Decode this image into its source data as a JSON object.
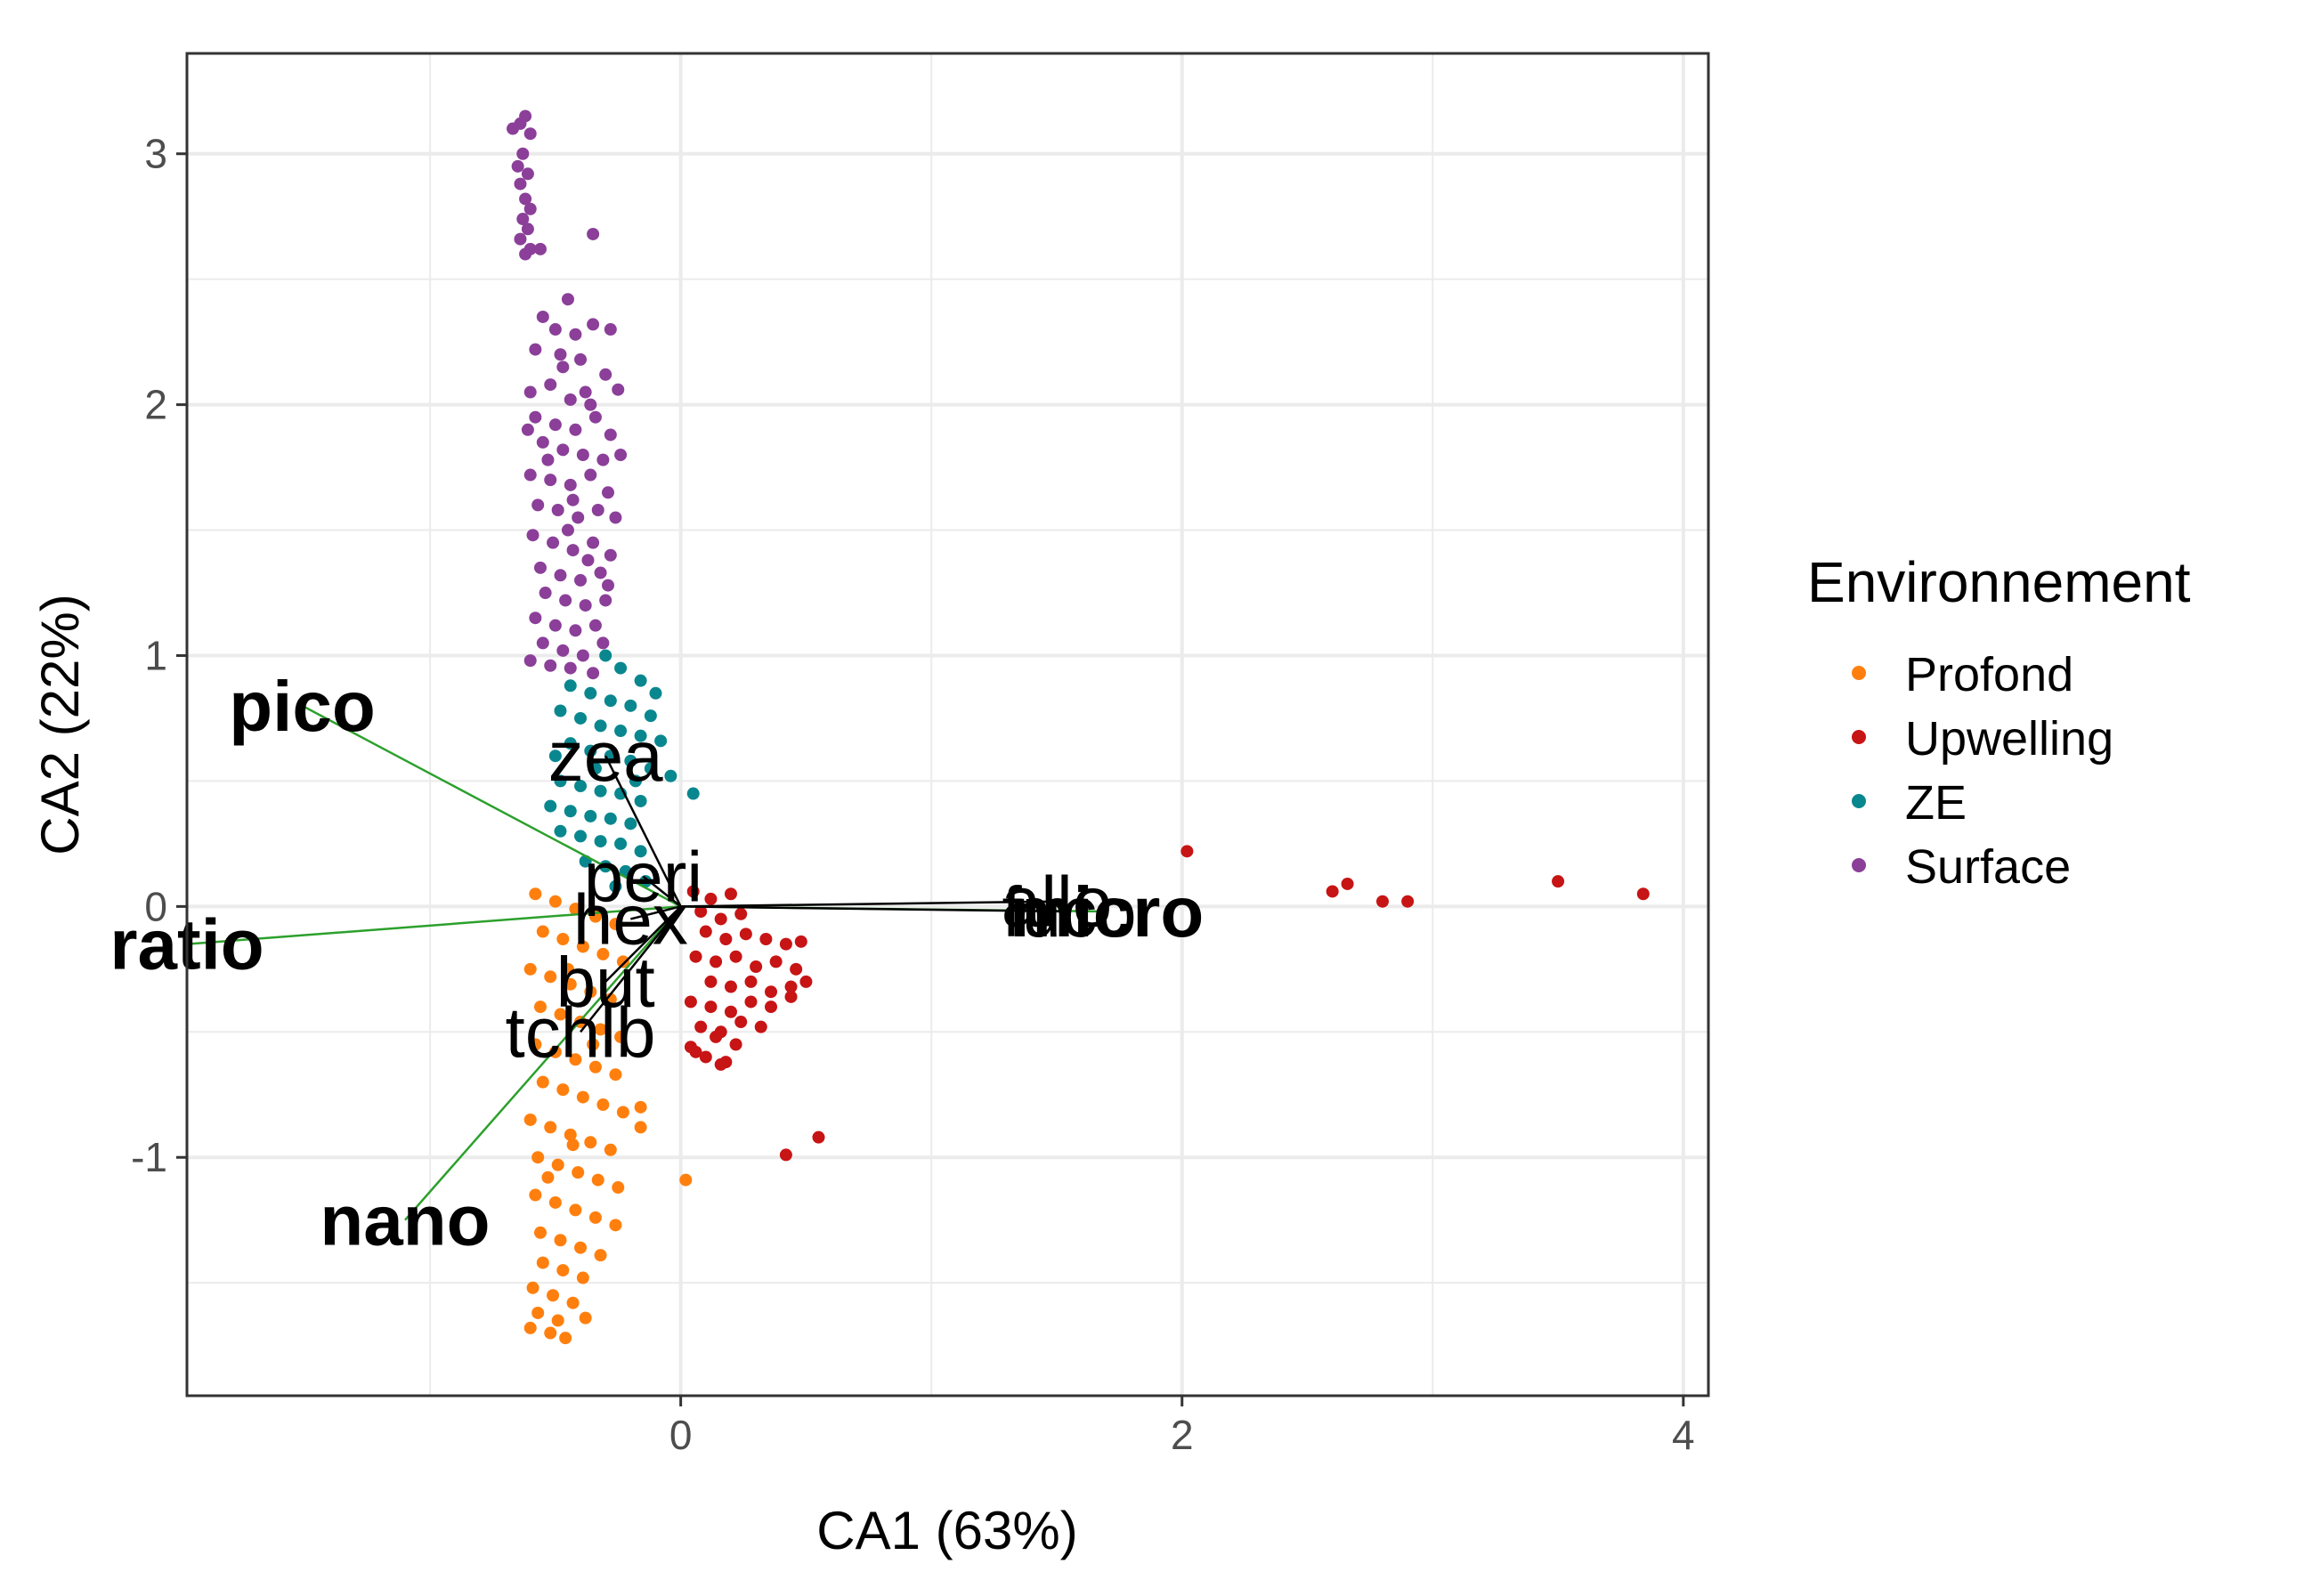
{
  "chart_data": {
    "type": "scatter",
    "xlabel": "CA1 (63%)",
    "ylabel": "CA2 (22%)",
    "xlim": [
      -1.97,
      4.1
    ],
    "ylim": [
      -1.95,
      3.4
    ],
    "x_ticks": [
      0,
      2,
      4
    ],
    "y_ticks": [
      -1,
      0,
      1,
      2,
      3
    ],
    "grid": true,
    "legend": {
      "title": "Environnement",
      "placement": "right",
      "entries": [
        {
          "name": "Profond",
          "color": "#FF7F0E"
        },
        {
          "name": "Upwelling",
          "color": "#C71414"
        },
        {
          "name": "ZE",
          "color": "#09878F"
        },
        {
          "name": "Surface",
          "color": "#8B3F99"
        }
      ]
    },
    "series": [
      {
        "name": "Surface",
        "color": "#8B3F99",
        "points": [
          [
            -0.67,
            3.1
          ],
          [
            -0.64,
            3.12
          ],
          [
            -0.62,
            3.15
          ],
          [
            -0.6,
            3.08
          ],
          [
            -0.63,
            3.0
          ],
          [
            -0.65,
            2.95
          ],
          [
            -0.61,
            2.92
          ],
          [
            -0.64,
            2.88
          ],
          [
            -0.62,
            2.82
          ],
          [
            -0.6,
            2.78
          ],
          [
            -0.63,
            2.74
          ],
          [
            -0.61,
            2.7
          ],
          [
            -0.64,
            2.66
          ],
          [
            -0.6,
            2.62
          ],
          [
            -0.62,
            2.6
          ],
          [
            -0.56,
            2.62
          ],
          [
            -0.35,
            2.68
          ],
          [
            -0.45,
            2.42
          ],
          [
            -0.55,
            2.35
          ],
          [
            -0.5,
            2.3
          ],
          [
            -0.42,
            2.28
          ],
          [
            -0.35,
            2.32
          ],
          [
            -0.28,
            2.3
          ],
          [
            -0.58,
            2.22
          ],
          [
            -0.48,
            2.2
          ],
          [
            -0.4,
            2.18
          ],
          [
            -0.3,
            2.12
          ],
          [
            -0.6,
            2.05
          ],
          [
            -0.52,
            2.08
          ],
          [
            -0.44,
            2.02
          ],
          [
            -0.36,
            2.0
          ],
          [
            -0.25,
            2.06
          ],
          [
            -0.58,
            1.95
          ],
          [
            -0.5,
            1.92
          ],
          [
            -0.42,
            1.9
          ],
          [
            -0.34,
            1.95
          ],
          [
            -0.28,
            1.88
          ],
          [
            -0.55,
            1.85
          ],
          [
            -0.47,
            1.82
          ],
          [
            -0.39,
            1.8
          ],
          [
            -0.31,
            1.78
          ],
          [
            -0.24,
            1.8
          ],
          [
            -0.6,
            1.72
          ],
          [
            -0.52,
            1.7
          ],
          [
            -0.44,
            1.68
          ],
          [
            -0.36,
            1.72
          ],
          [
            -0.29,
            1.65
          ],
          [
            -0.57,
            1.6
          ],
          [
            -0.49,
            1.58
          ],
          [
            -0.41,
            1.55
          ],
          [
            -0.33,
            1.58
          ],
          [
            -0.26,
            1.55
          ],
          [
            -0.59,
            1.48
          ],
          [
            -0.51,
            1.45
          ],
          [
            -0.43,
            1.42
          ],
          [
            -0.35,
            1.45
          ],
          [
            -0.28,
            1.4
          ],
          [
            -0.56,
            1.35
          ],
          [
            -0.48,
            1.32
          ],
          [
            -0.4,
            1.3
          ],
          [
            -0.32,
            1.33
          ],
          [
            -0.54,
            1.25
          ],
          [
            -0.46,
            1.22
          ],
          [
            -0.38,
            1.2
          ],
          [
            -0.3,
            1.22
          ],
          [
            -0.58,
            1.15
          ],
          [
            -0.5,
            1.12
          ],
          [
            -0.42,
            1.1
          ],
          [
            -0.34,
            1.12
          ],
          [
            -0.55,
            1.05
          ],
          [
            -0.47,
            1.02
          ],
          [
            -0.39,
            1.0
          ],
          [
            -0.31,
            1.05
          ],
          [
            -0.6,
            0.98
          ],
          [
            -0.52,
            0.96
          ],
          [
            -0.44,
            0.95
          ],
          [
            -0.35,
            0.93
          ],
          [
            -0.47,
            2.15
          ],
          [
            -0.38,
            2.05
          ],
          [
            -0.53,
            1.78
          ],
          [
            -0.45,
            1.5
          ],
          [
            -0.37,
            1.38
          ],
          [
            -0.29,
            1.28
          ],
          [
            -0.61,
            1.9
          ],
          [
            -0.43,
            1.62
          ]
        ]
      },
      {
        "name": "ZE",
        "color": "#09878F",
        "points": [
          [
            -0.3,
            1.0
          ],
          [
            -0.24,
            0.95
          ],
          [
            -0.16,
            0.9
          ],
          [
            -0.1,
            0.85
          ],
          [
            -0.44,
            0.88
          ],
          [
            -0.36,
            0.85
          ],
          [
            -0.28,
            0.82
          ],
          [
            -0.2,
            0.8
          ],
          [
            -0.12,
            0.76
          ],
          [
            -0.48,
            0.78
          ],
          [
            -0.4,
            0.75
          ],
          [
            -0.32,
            0.72
          ],
          [
            -0.24,
            0.7
          ],
          [
            -0.16,
            0.68
          ],
          [
            -0.08,
            0.66
          ],
          [
            -0.44,
            0.65
          ],
          [
            -0.36,
            0.62
          ],
          [
            -0.28,
            0.6
          ],
          [
            -0.2,
            0.58
          ],
          [
            -0.12,
            0.55
          ],
          [
            -0.04,
            0.52
          ],
          [
            -0.48,
            0.5
          ],
          [
            -0.4,
            0.48
          ],
          [
            -0.32,
            0.46
          ],
          [
            -0.24,
            0.45
          ],
          [
            -0.16,
            0.42
          ],
          [
            -0.52,
            0.4
          ],
          [
            -0.44,
            0.38
          ],
          [
            -0.36,
            0.36
          ],
          [
            -0.28,
            0.35
          ],
          [
            -0.2,
            0.33
          ],
          [
            -0.48,
            0.3
          ],
          [
            -0.4,
            0.28
          ],
          [
            -0.32,
            0.26
          ],
          [
            -0.24,
            0.25
          ],
          [
            -0.16,
            0.22
          ],
          [
            -0.38,
            0.18
          ],
          [
            -0.3,
            0.16
          ],
          [
            -0.22,
            0.14
          ],
          [
            -0.14,
            0.1
          ],
          [
            -0.26,
            0.08
          ],
          [
            0.05,
            0.45
          ],
          [
            -0.5,
            0.6
          ],
          [
            -0.34,
            0.55
          ],
          [
            -0.18,
            0.5
          ]
        ]
      },
      {
        "name": "Profond",
        "color": "#FF7F0E",
        "points": [
          [
            -0.58,
            0.05
          ],
          [
            -0.5,
            0.02
          ],
          [
            -0.42,
            -0.01
          ],
          [
            -0.34,
            -0.04
          ],
          [
            -0.26,
            -0.07
          ],
          [
            -0.55,
            -0.1
          ],
          [
            -0.47,
            -0.13
          ],
          [
            -0.39,
            -0.16
          ],
          [
            -0.31,
            -0.19
          ],
          [
            -0.23,
            -0.22
          ],
          [
            -0.6,
            -0.25
          ],
          [
            -0.52,
            -0.28
          ],
          [
            -0.44,
            -0.31
          ],
          [
            -0.36,
            -0.34
          ],
          [
            -0.28,
            -0.37
          ],
          [
            -0.56,
            -0.4
          ],
          [
            -0.48,
            -0.43
          ],
          [
            -0.4,
            -0.46
          ],
          [
            -0.32,
            -0.49
          ],
          [
            -0.24,
            -0.52
          ],
          [
            -0.58,
            -0.55
          ],
          [
            -0.5,
            -0.58
          ],
          [
            -0.42,
            -0.61
          ],
          [
            -0.34,
            -0.64
          ],
          [
            -0.26,
            -0.67
          ],
          [
            -0.55,
            -0.7
          ],
          [
            -0.47,
            -0.73
          ],
          [
            -0.39,
            -0.76
          ],
          [
            -0.31,
            -0.79
          ],
          [
            -0.23,
            -0.82
          ],
          [
            -0.6,
            -0.85
          ],
          [
            -0.52,
            -0.88
          ],
          [
            -0.44,
            -0.91
          ],
          [
            -0.36,
            -0.94
          ],
          [
            -0.28,
            -0.97
          ],
          [
            -0.57,
            -1.0
          ],
          [
            -0.49,
            -1.03
          ],
          [
            -0.41,
            -1.06
          ],
          [
            -0.33,
            -1.09
          ],
          [
            -0.25,
            -1.12
          ],
          [
            -0.58,
            -1.15
          ],
          [
            -0.5,
            -1.18
          ],
          [
            -0.42,
            -1.21
          ],
          [
            -0.34,
            -1.24
          ],
          [
            -0.26,
            -1.27
          ],
          [
            -0.56,
            -1.3
          ],
          [
            -0.48,
            -1.33
          ],
          [
            -0.4,
            -1.36
          ],
          [
            -0.32,
            -1.39
          ],
          [
            -0.55,
            -1.42
          ],
          [
            -0.47,
            -1.45
          ],
          [
            -0.39,
            -1.48
          ],
          [
            -0.59,
            -1.52
          ],
          [
            -0.51,
            -1.55
          ],
          [
            -0.43,
            -1.58
          ],
          [
            -0.57,
            -1.62
          ],
          [
            -0.49,
            -1.65
          ],
          [
            -0.6,
            -1.68
          ],
          [
            -0.52,
            -1.7
          ],
          [
            -0.46,
            -1.72
          ],
          [
            -0.38,
            -1.64
          ],
          [
            -0.16,
            -0.8
          ],
          [
            -0.16,
            -0.88
          ],
          [
            0.02,
            -1.09
          ],
          [
            -0.45,
            -0.25
          ],
          [
            -0.35,
            -0.55
          ],
          [
            -0.53,
            -1.08
          ],
          [
            -0.43,
            -0.95
          ]
        ]
      },
      {
        "name": "Upwelling",
        "color": "#C71414",
        "points": [
          [
            0.05,
            0.06
          ],
          [
            0.12,
            0.03
          ],
          [
            0.2,
            0.05
          ],
          [
            0.08,
            -0.02
          ],
          [
            0.16,
            -0.05
          ],
          [
            0.24,
            -0.03
          ],
          [
            0.1,
            -0.1
          ],
          [
            0.18,
            -0.13
          ],
          [
            0.26,
            -0.11
          ],
          [
            0.34,
            -0.13
          ],
          [
            0.42,
            -0.15
          ],
          [
            0.48,
            -0.14
          ],
          [
            0.06,
            -0.2
          ],
          [
            0.14,
            -0.22
          ],
          [
            0.22,
            -0.2
          ],
          [
            0.3,
            -0.24
          ],
          [
            0.38,
            -0.22
          ],
          [
            0.46,
            -0.25
          ],
          [
            0.12,
            -0.3
          ],
          [
            0.2,
            -0.32
          ],
          [
            0.28,
            -0.3
          ],
          [
            0.36,
            -0.34
          ],
          [
            0.44,
            -0.32
          ],
          [
            0.5,
            -0.3
          ],
          [
            0.04,
            -0.38
          ],
          [
            0.12,
            -0.4
          ],
          [
            0.2,
            -0.42
          ],
          [
            0.28,
            -0.38
          ],
          [
            0.36,
            -0.4
          ],
          [
            0.44,
            -0.36
          ],
          [
            0.08,
            -0.48
          ],
          [
            0.16,
            -0.5
          ],
          [
            0.24,
            -0.46
          ],
          [
            0.32,
            -0.48
          ],
          [
            0.14,
            -0.52
          ],
          [
            0.22,
            -0.55
          ],
          [
            0.04,
            -0.56
          ],
          [
            0.1,
            -0.6
          ],
          [
            0.18,
            -0.62
          ],
          [
            0.06,
            -0.58
          ],
          [
            0.16,
            -0.63
          ],
          [
            2.02,
            0.22
          ],
          [
            2.6,
            0.06
          ],
          [
            2.66,
            0.09
          ],
          [
            2.8,
            0.02
          ],
          [
            2.9,
            0.02
          ],
          [
            3.5,
            0.1
          ],
          [
            3.84,
            0.05
          ],
          [
            0.42,
            -0.99
          ],
          [
            0.55,
            -0.92
          ]
        ]
      }
    ],
    "variables": [
      {
        "name": "pico",
        "x": -1.51,
        "y": 0.8,
        "bold": true
      },
      {
        "name": "ratio",
        "x": -1.97,
        "y": -0.15,
        "bold": true
      },
      {
        "name": "nano",
        "x": -1.1,
        "y": -1.25,
        "bold": true
      },
      {
        "name": "micro",
        "x": 1.7,
        "y": -0.02,
        "bold": true
      },
      {
        "name": "fuco",
        "x": 1.55,
        "y": -0.02,
        "bold": false
      },
      {
        "name": "allo",
        "x": 1.5,
        "y": 0.02,
        "bold": false
      },
      {
        "name": "zea",
        "x": -0.3,
        "y": 0.6,
        "bold": false
      },
      {
        "name": "peri",
        "x": -0.15,
        "y": 0.12,
        "bold": false
      },
      {
        "name": "hex",
        "x": -0.2,
        "y": -0.05,
        "bold": false
      },
      {
        "name": "but",
        "x": -0.3,
        "y": -0.3,
        "bold": false
      },
      {
        "name": "tchlb",
        "x": -0.4,
        "y": -0.5,
        "bold": false
      }
    ],
    "variable_label_text": [
      "pico",
      "ratio",
      "nano",
      "micro",
      "fuco",
      "allo",
      "zea",
      "peri",
      "hex",
      "but",
      "tchlb"
    ]
  }
}
